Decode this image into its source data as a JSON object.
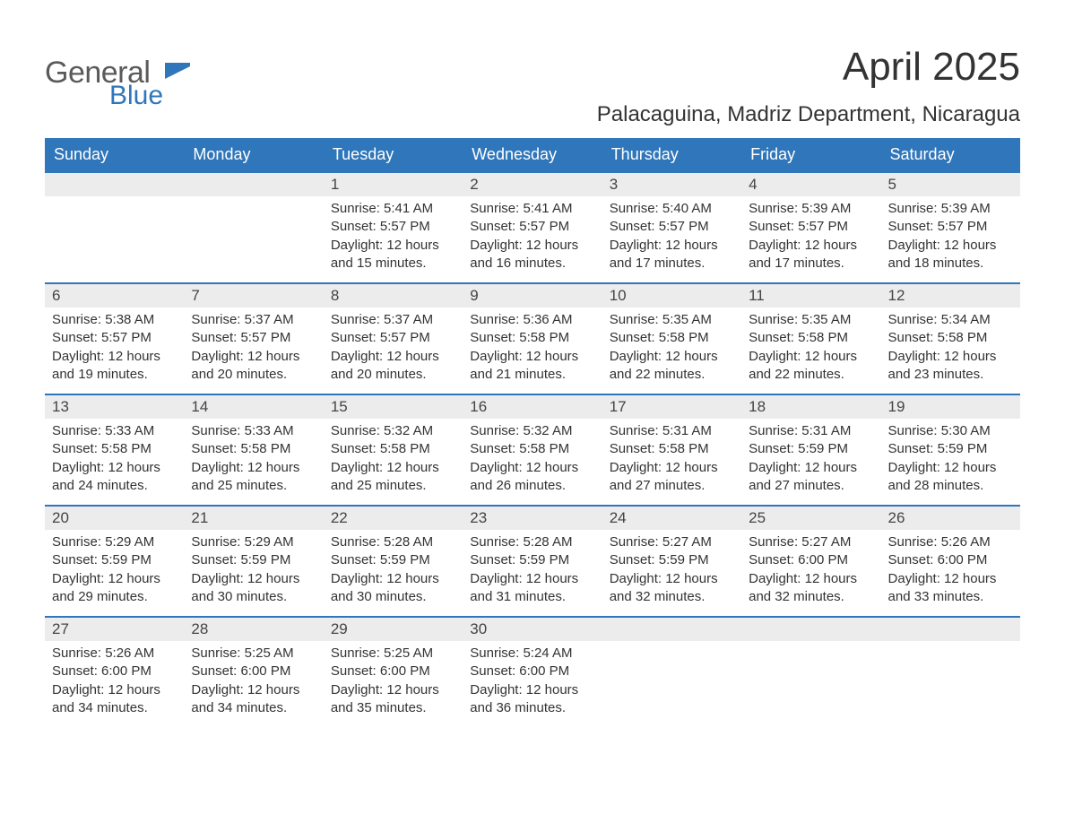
{
  "logo": {
    "general": "General",
    "blue": "Blue",
    "flag_color": "#2f76bb"
  },
  "title": "April 2025",
  "location": "Palacaguina, Madriz Department, Nicaragua",
  "colors": {
    "header_bg": "#2f76bb",
    "header_text": "#ffffff",
    "daynum_bg": "#ececec",
    "daynum_border": "#2f76bb",
    "body_text": "#333333",
    "page_bg": "#ffffff"
  },
  "weekdays": [
    "Sunday",
    "Monday",
    "Tuesday",
    "Wednesday",
    "Thursday",
    "Friday",
    "Saturday"
  ],
  "weeks": [
    [
      null,
      null,
      {
        "n": "1",
        "sr": "5:41 AM",
        "ss": "5:57 PM",
        "dl": "12 hours and 15 minutes."
      },
      {
        "n": "2",
        "sr": "5:41 AM",
        "ss": "5:57 PM",
        "dl": "12 hours and 16 minutes."
      },
      {
        "n": "3",
        "sr": "5:40 AM",
        "ss": "5:57 PM",
        "dl": "12 hours and 17 minutes."
      },
      {
        "n": "4",
        "sr": "5:39 AM",
        "ss": "5:57 PM",
        "dl": "12 hours and 17 minutes."
      },
      {
        "n": "5",
        "sr": "5:39 AM",
        "ss": "5:57 PM",
        "dl": "12 hours and 18 minutes."
      }
    ],
    [
      {
        "n": "6",
        "sr": "5:38 AM",
        "ss": "5:57 PM",
        "dl": "12 hours and 19 minutes."
      },
      {
        "n": "7",
        "sr": "5:37 AM",
        "ss": "5:57 PM",
        "dl": "12 hours and 20 minutes."
      },
      {
        "n": "8",
        "sr": "5:37 AM",
        "ss": "5:57 PM",
        "dl": "12 hours and 20 minutes."
      },
      {
        "n": "9",
        "sr": "5:36 AM",
        "ss": "5:58 PM",
        "dl": "12 hours and 21 minutes."
      },
      {
        "n": "10",
        "sr": "5:35 AM",
        "ss": "5:58 PM",
        "dl": "12 hours and 22 minutes."
      },
      {
        "n": "11",
        "sr": "5:35 AM",
        "ss": "5:58 PM",
        "dl": "12 hours and 22 minutes."
      },
      {
        "n": "12",
        "sr": "5:34 AM",
        "ss": "5:58 PM",
        "dl": "12 hours and 23 minutes."
      }
    ],
    [
      {
        "n": "13",
        "sr": "5:33 AM",
        "ss": "5:58 PM",
        "dl": "12 hours and 24 minutes."
      },
      {
        "n": "14",
        "sr": "5:33 AM",
        "ss": "5:58 PM",
        "dl": "12 hours and 25 minutes."
      },
      {
        "n": "15",
        "sr": "5:32 AM",
        "ss": "5:58 PM",
        "dl": "12 hours and 25 minutes."
      },
      {
        "n": "16",
        "sr": "5:32 AM",
        "ss": "5:58 PM",
        "dl": "12 hours and 26 minutes."
      },
      {
        "n": "17",
        "sr": "5:31 AM",
        "ss": "5:58 PM",
        "dl": "12 hours and 27 minutes."
      },
      {
        "n": "18",
        "sr": "5:31 AM",
        "ss": "5:59 PM",
        "dl": "12 hours and 27 minutes."
      },
      {
        "n": "19",
        "sr": "5:30 AM",
        "ss": "5:59 PM",
        "dl": "12 hours and 28 minutes."
      }
    ],
    [
      {
        "n": "20",
        "sr": "5:29 AM",
        "ss": "5:59 PM",
        "dl": "12 hours and 29 minutes."
      },
      {
        "n": "21",
        "sr": "5:29 AM",
        "ss": "5:59 PM",
        "dl": "12 hours and 30 minutes."
      },
      {
        "n": "22",
        "sr": "5:28 AM",
        "ss": "5:59 PM",
        "dl": "12 hours and 30 minutes."
      },
      {
        "n": "23",
        "sr": "5:28 AM",
        "ss": "5:59 PM",
        "dl": "12 hours and 31 minutes."
      },
      {
        "n": "24",
        "sr": "5:27 AM",
        "ss": "5:59 PM",
        "dl": "12 hours and 32 minutes."
      },
      {
        "n": "25",
        "sr": "5:27 AM",
        "ss": "6:00 PM",
        "dl": "12 hours and 32 minutes."
      },
      {
        "n": "26",
        "sr": "5:26 AM",
        "ss": "6:00 PM",
        "dl": "12 hours and 33 minutes."
      }
    ],
    [
      {
        "n": "27",
        "sr": "5:26 AM",
        "ss": "6:00 PM",
        "dl": "12 hours and 34 minutes."
      },
      {
        "n": "28",
        "sr": "5:25 AM",
        "ss": "6:00 PM",
        "dl": "12 hours and 34 minutes."
      },
      {
        "n": "29",
        "sr": "5:25 AM",
        "ss": "6:00 PM",
        "dl": "12 hours and 35 minutes."
      },
      {
        "n": "30",
        "sr": "5:24 AM",
        "ss": "6:00 PM",
        "dl": "12 hours and 36 minutes."
      },
      null,
      null,
      null
    ]
  ],
  "labels": {
    "sunrise": "Sunrise: ",
    "sunset": "Sunset: ",
    "daylight": "Daylight: "
  }
}
